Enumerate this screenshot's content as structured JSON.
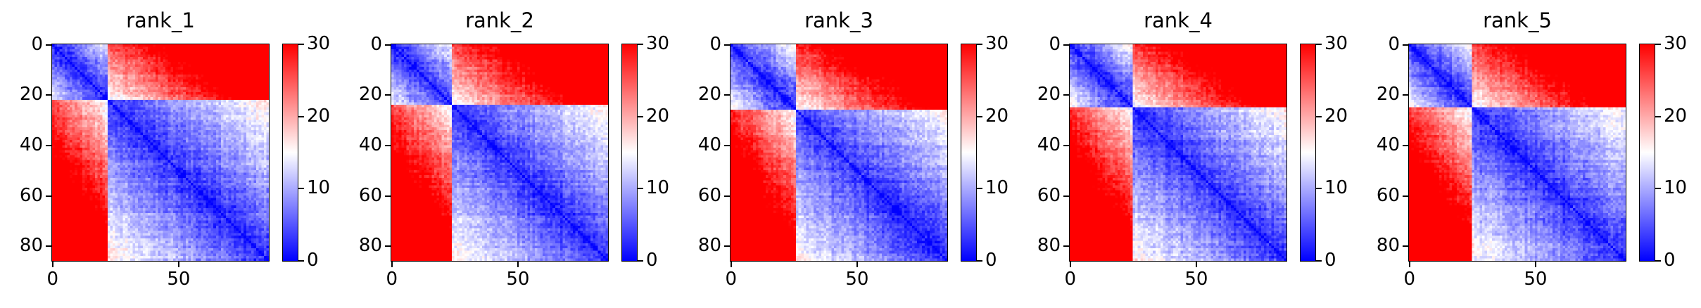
{
  "chart_data": [
    {
      "type": "heatmap",
      "title": "rank_1",
      "matrix_size": 86,
      "domain_breaks": [
        0,
        22,
        86
      ],
      "xticks": [
        "0",
        "50"
      ],
      "xtick_values": [
        0,
        50
      ],
      "yticks": [
        "0",
        "20",
        "40",
        "60",
        "80"
      ],
      "ytick_values": [
        0,
        20,
        40,
        60,
        80
      ],
      "colorbar": {
        "min": 0,
        "max": 30,
        "ticks": [
          "0",
          "10",
          "20",
          "30"
        ],
        "tick_values": [
          0,
          10,
          20,
          30
        ]
      },
      "colormap": "bwr",
      "colors": {
        "low": "#0000ff",
        "mid": "#ffffff",
        "high": "#ff0000"
      }
    },
    {
      "type": "heatmap",
      "title": "rank_2",
      "matrix_size": 86,
      "domain_breaks": [
        0,
        24,
        86
      ],
      "xticks": [
        "0",
        "50"
      ],
      "xtick_values": [
        0,
        50
      ],
      "yticks": [
        "0",
        "20",
        "40",
        "60",
        "80"
      ],
      "ytick_values": [
        0,
        20,
        40,
        60,
        80
      ],
      "colorbar": {
        "min": 0,
        "max": 30,
        "ticks": [
          "0",
          "10",
          "20",
          "30"
        ],
        "tick_values": [
          0,
          10,
          20,
          30
        ]
      },
      "colormap": "bwr",
      "colors": {
        "low": "#0000ff",
        "mid": "#ffffff",
        "high": "#ff0000"
      }
    },
    {
      "type": "heatmap",
      "title": "rank_3",
      "matrix_size": 86,
      "domain_breaks": [
        0,
        26,
        86
      ],
      "xticks": [
        "0",
        "50"
      ],
      "xtick_values": [
        0,
        50
      ],
      "yticks": [
        "0",
        "20",
        "40",
        "60",
        "80"
      ],
      "ytick_values": [
        0,
        20,
        40,
        60,
        80
      ],
      "colorbar": {
        "min": 0,
        "max": 30,
        "ticks": [
          "0",
          "10",
          "20",
          "30"
        ],
        "tick_values": [
          0,
          10,
          20,
          30
        ]
      },
      "colormap": "bwr",
      "colors": {
        "low": "#0000ff",
        "mid": "#ffffff",
        "high": "#ff0000"
      }
    },
    {
      "type": "heatmap",
      "title": "rank_4",
      "matrix_size": 86,
      "domain_breaks": [
        0,
        25,
        86
      ],
      "xticks": [
        "0",
        "50"
      ],
      "xtick_values": [
        0,
        50
      ],
      "yticks": [
        "0",
        "20",
        "40",
        "60",
        "80"
      ],
      "ytick_values": [
        0,
        20,
        40,
        60,
        80
      ],
      "colorbar": {
        "min": 0,
        "max": 30,
        "ticks": [
          "0",
          "10",
          "20",
          "30"
        ],
        "tick_values": [
          0,
          10,
          20,
          30
        ]
      },
      "colormap": "bwr",
      "colors": {
        "low": "#0000ff",
        "mid": "#ffffff",
        "high": "#ff0000"
      }
    },
    {
      "type": "heatmap",
      "title": "rank_5",
      "matrix_size": 86,
      "domain_breaks": [
        0,
        25,
        86
      ],
      "xticks": [
        "0",
        "50"
      ],
      "xtick_values": [
        0,
        50
      ],
      "yticks": [
        "0",
        "20",
        "40",
        "60",
        "80"
      ],
      "ytick_values": [
        0,
        20,
        40,
        60,
        80
      ],
      "colorbar": {
        "min": 0,
        "max": 30,
        "ticks": [
          "0",
          "10",
          "20",
          "30"
        ],
        "tick_values": [
          0,
          10,
          20,
          30
        ]
      },
      "colormap": "bwr",
      "colors": {
        "low": "#0000ff",
        "mid": "#ffffff",
        "high": "#ff0000"
      }
    }
  ]
}
